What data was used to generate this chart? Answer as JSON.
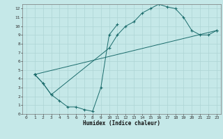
{
  "xlabel": "Humidex (Indice chaleur)",
  "bg_color": "#c5e8e8",
  "grid_color": "#aed4d4",
  "line_color": "#1a6b6b",
  "line1_x": [
    1,
    2,
    3,
    4,
    5,
    6,
    7,
    8,
    9,
    10,
    11
  ],
  "line1_y": [
    4.5,
    3.5,
    2.2,
    1.5,
    0.8,
    0.8,
    0.5,
    0.3,
    3.0,
    9.0,
    10.2
  ],
  "line2_x": [
    1,
    2,
    3,
    10,
    11,
    12,
    13,
    14,
    15,
    16,
    17,
    18,
    19,
    20,
    21,
    22,
    23
  ],
  "line2_y": [
    4.5,
    3.5,
    2.2,
    7.5,
    9.0,
    10.0,
    10.5,
    11.5,
    12.0,
    12.5,
    12.2,
    12.0,
    11.0,
    9.5,
    9.0,
    9.0,
    9.5
  ],
  "line3_x": [
    1,
    23
  ],
  "line3_y": [
    4.5,
    9.5
  ],
  "xlim": [
    -0.5,
    23.5
  ],
  "ylim": [
    0,
    12.5
  ],
  "xticks": [
    0,
    1,
    2,
    3,
    4,
    5,
    6,
    7,
    8,
    9,
    10,
    11,
    12,
    13,
    14,
    15,
    16,
    17,
    18,
    19,
    20,
    21,
    22,
    23
  ],
  "yticks": [
    0,
    1,
    2,
    3,
    4,
    5,
    6,
    7,
    8,
    9,
    10,
    11,
    12
  ],
  "xlabel_fontsize": 5.5,
  "tick_fontsize": 4.5
}
